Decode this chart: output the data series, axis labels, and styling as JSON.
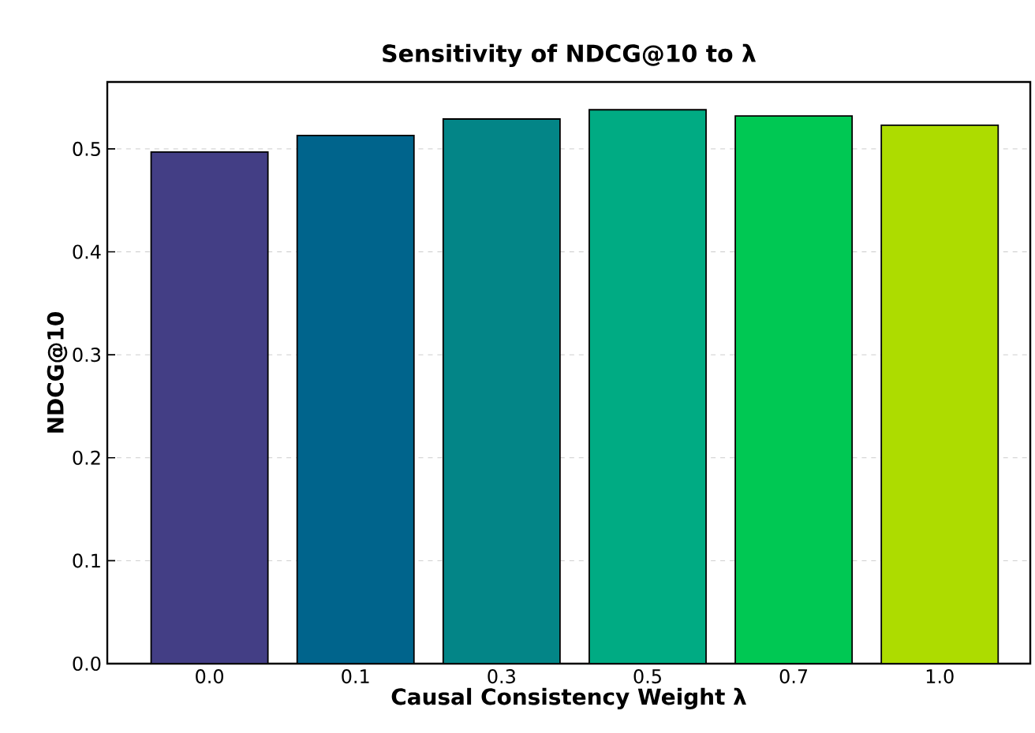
{
  "chart_data": {
    "type": "bar",
    "title": "Sensitivity of NDCG@10 to λ",
    "xlabel": "Causal Consistency Weight λ",
    "ylabel": "NDCG@10",
    "categories": [
      "0.0",
      "0.1",
      "0.3",
      "0.5",
      "0.7",
      "1.0"
    ],
    "values": [
      0.497,
      0.513,
      0.529,
      0.538,
      0.532,
      0.523
    ],
    "colors": [
      "#433e85",
      "#00648c",
      "#038587",
      "#00ab83",
      "#00c853",
      "#addc00"
    ],
    "ylim": [
      0,
      0.565
    ],
    "yticks": [
      {
        "value": 0,
        "label": "0.0"
      },
      0.1,
      0.2,
      0.3,
      0.4,
      0.5
    ],
    "grid": "y"
  }
}
